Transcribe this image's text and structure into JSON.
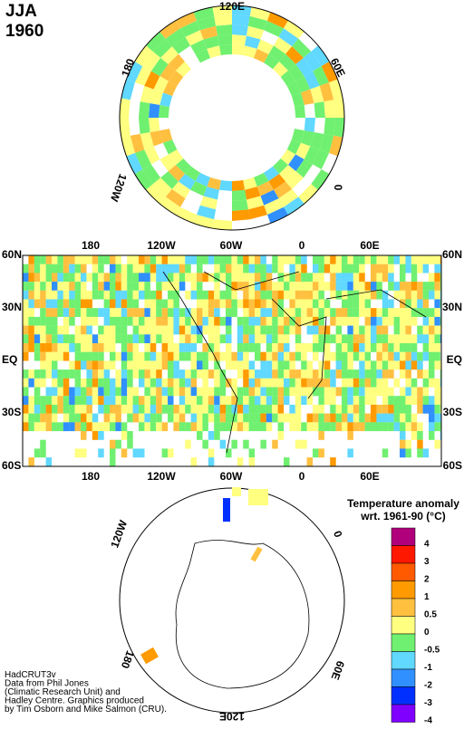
{
  "title": {
    "season": "JJA",
    "year": "1960"
  },
  "north_map": {
    "labels": [
      "120E",
      "60E",
      "0",
      "120W",
      "180"
    ]
  },
  "rect_map": {
    "lat_labels_left": [
      "60N",
      "30N",
      "EQ",
      "30S",
      "60S"
    ],
    "lat_labels_right": [
      "60N",
      "30N",
      "EQ",
      "30S",
      "60S"
    ],
    "lon_labels_top": [
      "180",
      "120W",
      "60W",
      "0",
      "60E"
    ],
    "lon_labels_bottom": [
      "180",
      "120W",
      "60W",
      "0",
      "60E"
    ]
  },
  "south_map": {
    "labels": [
      "120W",
      "0",
      "60E",
      "120E",
      "180"
    ]
  },
  "legend": {
    "title": "Temperature anomaly",
    "subtitle": "wrt. 1961-90  (°C)",
    "labels": [
      "4",
      "3",
      "2",
      "1",
      "0.5",
      "0",
      "-0.5",
      "-1",
      "-2",
      "-3",
      "-4"
    ],
    "colors": [
      "#b0007c",
      "#ff1800",
      "#ff5a00",
      "#ff9a00",
      "#ffc040",
      "#ffff80",
      "#70f070",
      "#60d8ff",
      "#3090ff",
      "#0030ff",
      "#8000ff"
    ]
  },
  "credits": [
    "HadCRUT3v",
    "Data from Phil Jones",
    "(Climatic Research Unit) and",
    "Hadley Centre.  Graphics produced",
    "by Tim Osborn and Mike Salmon (CRU)."
  ]
}
